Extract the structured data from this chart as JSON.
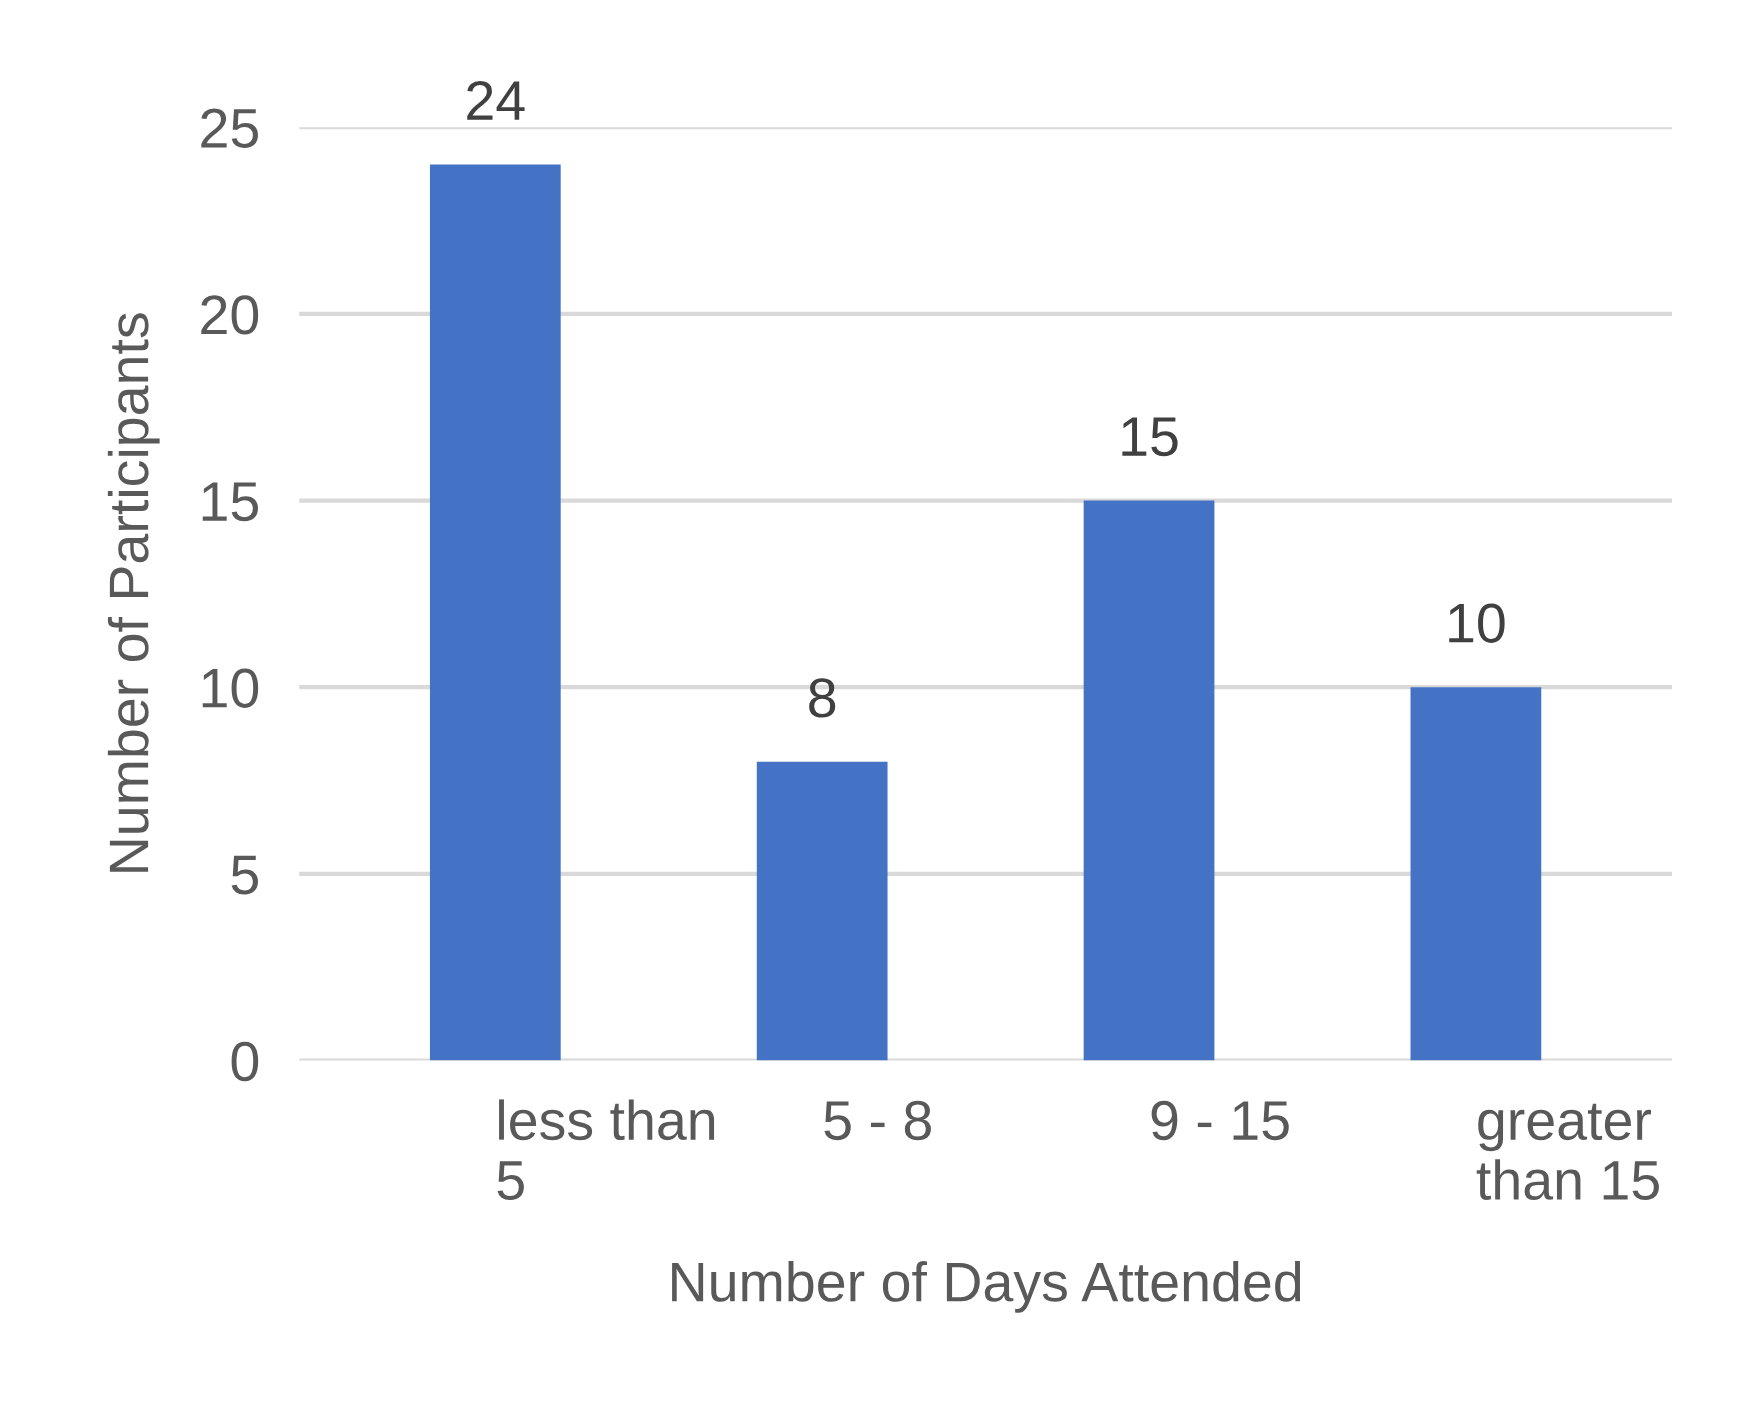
{
  "chart_data": {
    "type": "bar",
    "xlabel": "Number of Days Attended",
    "ylabel": "Number of Participants",
    "categories": [
      "less than\n5",
      "5 - 8",
      "9 - 15",
      "greater\nthan 15"
    ],
    "values": [
      24,
      8,
      15,
      10
    ],
    "color": "#4472c4",
    "ylim": [
      0,
      25
    ],
    "yticks": [
      0,
      5,
      10,
      15,
      20,
      25
    ],
    "grid": "y",
    "data_labels": true
  }
}
